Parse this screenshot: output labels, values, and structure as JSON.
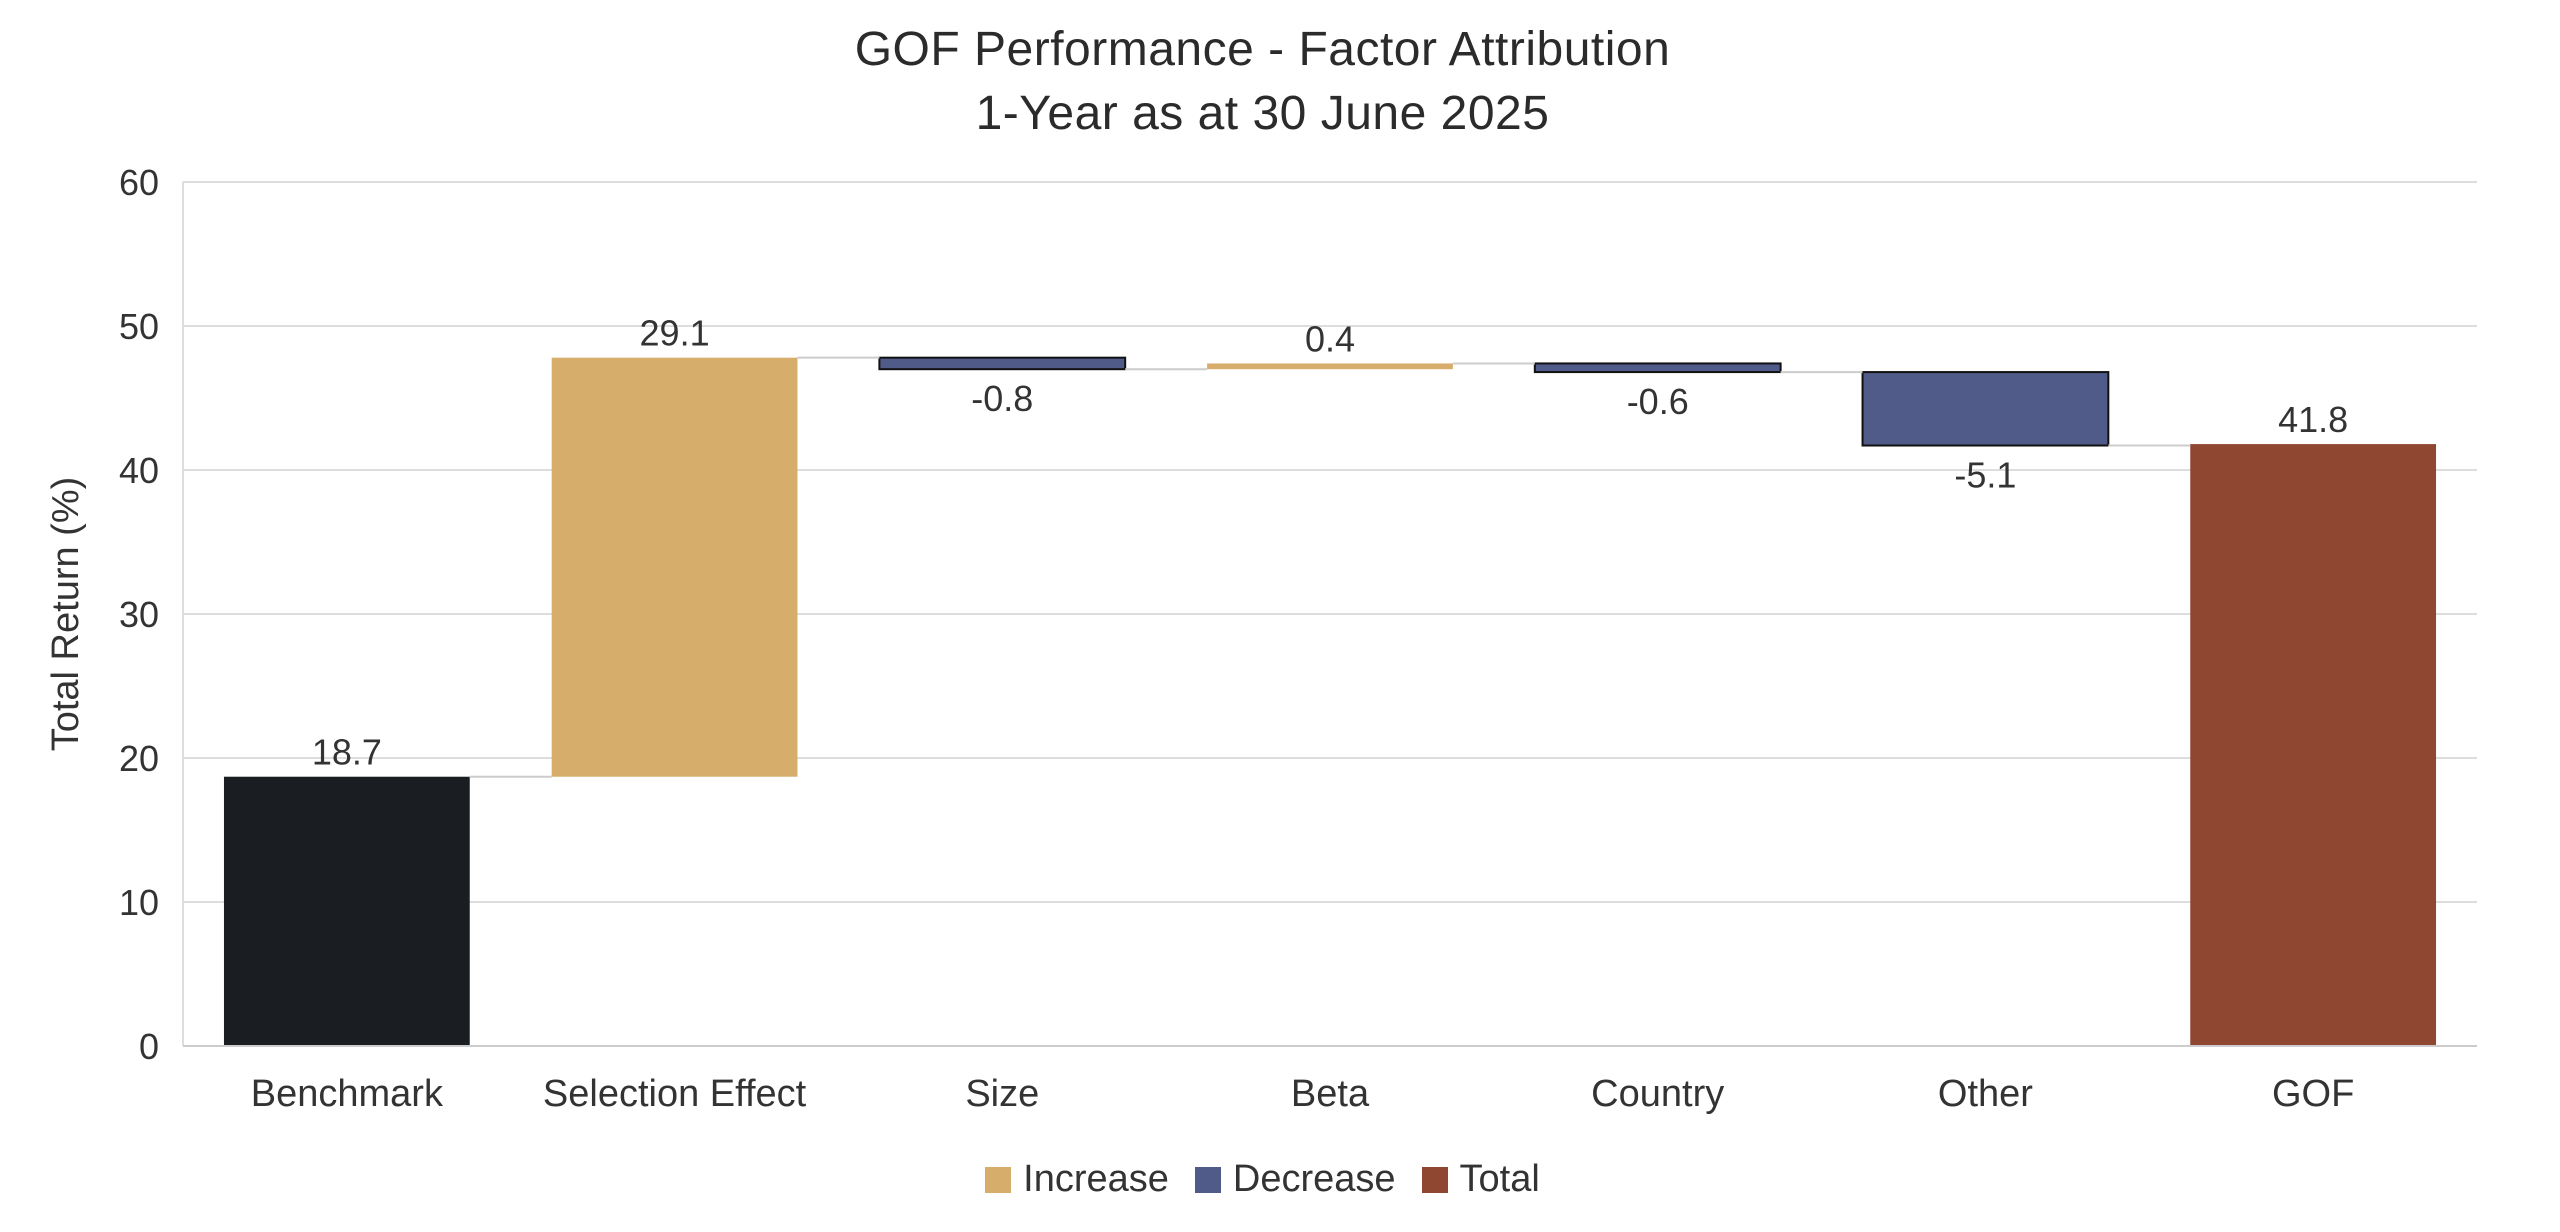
{
  "chart_data": {
    "type": "waterfall",
    "title": "GOF Performance - Factor Attribution",
    "subtitle": "1-Year as at 30 June 2025",
    "xlabel": "",
    "ylabel": "Total Return (%)",
    "ylim": [
      0,
      60
    ],
    "yticks": [
      0,
      10,
      20,
      30,
      40,
      50,
      60
    ],
    "grid": true,
    "legend_position": "bottom",
    "categories": [
      "Benchmark",
      "Selection Effect",
      "Size",
      "Beta",
      "Country",
      "Other",
      "GOF"
    ],
    "steps": [
      {
        "category": "Benchmark",
        "value": 18.7,
        "kind": "start",
        "label": "18.7"
      },
      {
        "category": "Selection Effect",
        "value": 29.1,
        "kind": "increase",
        "label": "29.1"
      },
      {
        "category": "Size",
        "value": -0.8,
        "kind": "decrease",
        "label": "-0.8"
      },
      {
        "category": "Beta",
        "value": 0.4,
        "kind": "increase",
        "label": "0.4"
      },
      {
        "category": "Country",
        "value": -0.6,
        "kind": "decrease",
        "label": "-0.6"
      },
      {
        "category": "Other",
        "value": -5.1,
        "kind": "decrease",
        "label": "-5.1"
      },
      {
        "category": "GOF",
        "value": 41.8,
        "kind": "total",
        "label": "41.8"
      }
    ],
    "legend": [
      {
        "label": "Increase",
        "color": "#D6AD6A"
      },
      {
        "label": "Decrease",
        "color": "#515B8A"
      },
      {
        "label": "Total",
        "color": "#8F4731"
      }
    ],
    "colors": {
      "start": "#1A1D21",
      "increase": "#D6AD6A",
      "decrease": "#515B8A",
      "total": "#8F4731",
      "grid": "#DDDDDD",
      "connector": "#CCCCCC"
    }
  }
}
